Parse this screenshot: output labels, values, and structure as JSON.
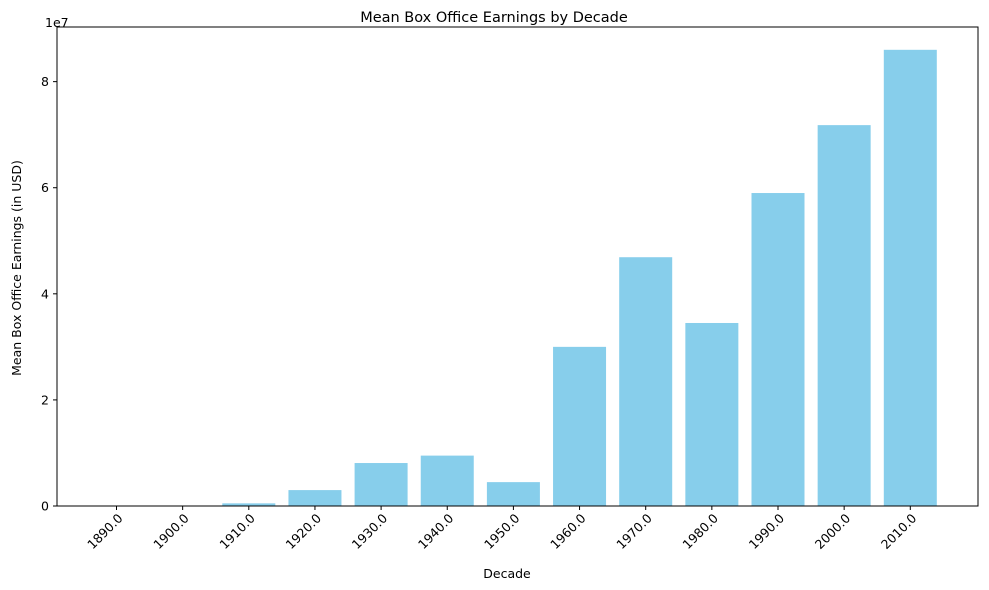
{
  "chart_data": {
    "type": "bar",
    "title": "Mean Box Office Earnings by Decade",
    "xlabel": "Decade",
    "ylabel": "Mean Box Office Earnings (in USD)",
    "y_offset_label": "1e7",
    "categories": [
      "1890.0",
      "1900.0",
      "1910.0",
      "1920.0",
      "1930.0",
      "1940.0",
      "1950.0",
      "1960.0",
      "1970.0",
      "1980.0",
      "1990.0",
      "2000.0",
      "2010.0"
    ],
    "values": [
      0,
      0,
      500000,
      3000000,
      8100000,
      9500000,
      4500000,
      30000000,
      46900000,
      34500000,
      59000000,
      71800000,
      86000000
    ],
    "ylim": [
      0,
      90300000
    ],
    "yticks": [
      0,
      20000000,
      40000000,
      60000000,
      80000000
    ],
    "ytick_labels": [
      "0",
      "2",
      "4",
      "6",
      "8"
    ],
    "bar_color": "#87CEEB",
    "grid": false,
    "legend": null
  }
}
